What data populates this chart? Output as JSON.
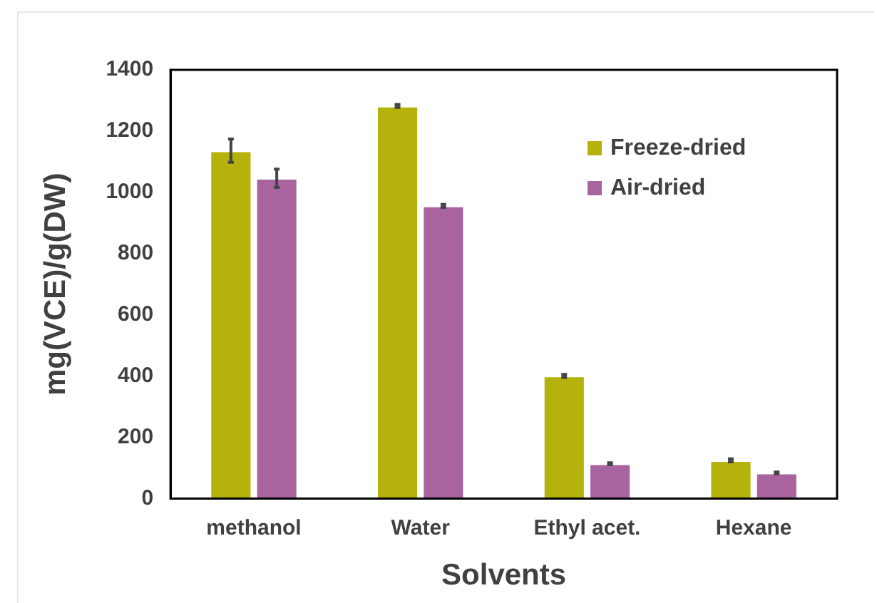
{
  "chart_data": {
    "type": "bar",
    "xlabel": "Solvents",
    "ylabel": "mg(VCE)/g(DW)",
    "categories": [
      "methanol",
      "Water",
      "Ethyl acet.",
      "Hexane"
    ],
    "series": [
      {
        "name": "Freeze-dried",
        "color": "#b5b20b",
        "values": [
          1136,
          1282,
          401,
          125
        ],
        "errors": [
          38,
          5,
          5,
          5
        ]
      },
      {
        "name": "Air-dried",
        "color": "#a9649f",
        "values": [
          1046,
          956,
          114,
          84
        ],
        "errors": [
          30,
          5,
          3,
          3
        ]
      }
    ],
    "ylim": [
      0,
      1400
    ],
    "yticks": [
      0,
      200,
      400,
      600,
      800,
      1000,
      1200,
      1400
    ],
    "grid": false,
    "legend": "top right"
  }
}
